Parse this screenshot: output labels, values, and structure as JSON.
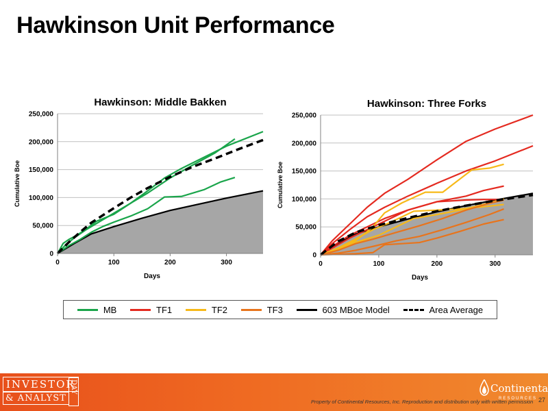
{
  "slide": {
    "title": "Hawkinson Unit Performance",
    "disclaimer": "Property of Continental Resources, Inc. Reproduction and distribution only with written permission",
    "page_number": "27",
    "logo_text_top": "INVESTOR",
    "logo_text_bottom": "& ANALYST",
    "logo_text_day": "DAY",
    "brand_name": "Continental",
    "brand_sub": "RESOURCES"
  },
  "colors": {
    "MB": "#1aa54b",
    "TF1": "#e42a20",
    "TF2": "#f7b918",
    "TF3": "#e8741c",
    "model": "#000000",
    "area_fill": "#a6a6a6",
    "footer": "#ef6a22"
  },
  "legend": [
    {
      "name": "MB",
      "color": "#1aa54b",
      "style": "solid"
    },
    {
      "name": "TF1",
      "color": "#e42a20",
      "style": "solid"
    },
    {
      "name": "TF2",
      "color": "#f7b918",
      "style": "solid"
    },
    {
      "name": "TF3",
      "color": "#e8741c",
      "style": "solid"
    },
    {
      "name": "603 MBoe Model",
      "color": "#000000",
      "style": "solid"
    },
    {
      "name": "Area Average",
      "color": "#000000",
      "style": "dashed"
    }
  ],
  "chart_data": [
    {
      "type": "line",
      "title": "Hawkinson: Middle Bakken",
      "xlabel": "Days",
      "ylabel": "Cumulative Boe",
      "xlim": [
        0,
        365
      ],
      "ylim": [
        0,
        250000
      ],
      "xticks": [
        0,
        100,
        200,
        300
      ],
      "yticks": [
        0,
        50000,
        100000,
        150000,
        200000,
        250000
      ],
      "ytick_labels": [
        "0",
        "50,000",
        "100,000",
        "150,000",
        "200,000",
        "250,000"
      ],
      "grid": "horizontal",
      "area_model": {
        "name": "603 MBoe Model",
        "x": [
          0,
          30,
          60,
          100,
          150,
          200,
          250,
          300,
          365
        ],
        "y": [
          0,
          18000,
          35000,
          48000,
          63000,
          77000,
          88000,
          99000,
          112000
        ]
      },
      "series": [
        {
          "name": "MB",
          "color": "#1aa54b",
          "style": "solid",
          "x": [
            0,
            10,
            20,
            35,
            50,
            70,
            100,
            130,
            160,
            200,
            240,
            280,
            315
          ],
          "y": [
            0,
            18000,
            25000,
            33000,
            43000,
            58000,
            70000,
            90000,
            108000,
            135000,
            158000,
            180000,
            205000
          ]
        },
        {
          "name": "MB",
          "color": "#1aa54b",
          "style": "solid",
          "x": [
            0,
            15,
            30,
            50,
            75,
            100,
            130,
            160,
            190,
            220,
            260,
            300,
            365
          ],
          "y": [
            0,
            16000,
            28000,
            42000,
            57000,
            72000,
            90000,
            112000,
            135000,
            152000,
            172000,
            192000,
            218000
          ]
        },
        {
          "name": "MB",
          "color": "#1aa54b",
          "style": "solid",
          "x": [
            0,
            20,
            40,
            60,
            80,
            100,
            130,
            160,
            190,
            220,
            260,
            290,
            315
          ],
          "y": [
            0,
            14000,
            25000,
            38000,
            48000,
            56000,
            67000,
            80000,
            101000,
            102000,
            114000,
            128000,
            136000
          ]
        },
        {
          "name": "Area Average",
          "color": "#000000",
          "style": "dashed",
          "x": [
            0,
            20,
            40,
            60,
            80,
            100,
            130,
            160,
            200,
            240,
            280,
            320,
            365
          ],
          "y": [
            0,
            20000,
            38000,
            55000,
            68000,
            81000,
            100000,
            117000,
            137000,
            155000,
            170000,
            186000,
            203000
          ]
        }
      ]
    },
    {
      "type": "line",
      "title": "Hawkinson: Three Forks",
      "xlabel": "Days",
      "ylabel": "Cumulative Boe",
      "xlim": [
        0,
        365
      ],
      "ylim": [
        0,
        250000
      ],
      "xticks": [
        0,
        100,
        200,
        300
      ],
      "yticks": [
        0,
        50000,
        100000,
        150000,
        200000,
        250000
      ],
      "ytick_labels": [
        "0",
        "50,000",
        "100,000",
        "150,000",
        "200,000",
        "250,000"
      ],
      "grid": "horizontal",
      "area_model": {
        "name": "603 MBoe Model",
        "x": [
          0,
          30,
          60,
          100,
          150,
          200,
          250,
          300,
          365
        ],
        "y": [
          0,
          20000,
          37000,
          50000,
          64000,
          77000,
          88000,
          98000,
          110000
        ]
      },
      "series": [
        {
          "name": "TF1",
          "color": "#e42a20",
          "style": "solid",
          "x": [
            0,
            20,
            50,
            80,
            110,
            150,
            200,
            250,
            300,
            365
          ],
          "y": [
            0,
            25000,
            55000,
            85000,
            110000,
            135000,
            170000,
            203000,
            225000,
            250000
          ]
        },
        {
          "name": "TF1",
          "color": "#e42a20",
          "style": "solid",
          "x": [
            0,
            20,
            50,
            80,
            110,
            150,
            200,
            250,
            300,
            365
          ],
          "y": [
            0,
            20000,
            45000,
            68000,
            85000,
            105000,
            128000,
            150000,
            168000,
            195000
          ]
        },
        {
          "name": "TF1",
          "color": "#e42a20",
          "style": "solid",
          "x": [
            0,
            20,
            50,
            80,
            110,
            150,
            200,
            250,
            280,
            315
          ],
          "y": [
            0,
            15000,
            35000,
            50000,
            65000,
            80000,
            95000,
            105000,
            115000,
            123000
          ]
        },
        {
          "name": "TF1",
          "color": "#e42a20",
          "style": "solid",
          "x": [
            0,
            20,
            50,
            80,
            110,
            150,
            200,
            250,
            280,
            315
          ],
          "y": [
            0,
            12000,
            30000,
            45000,
            60000,
            80000,
            95000,
            98000,
            99000,
            99000
          ]
        },
        {
          "name": "TF2",
          "color": "#f7b918",
          "style": "solid",
          "x": [
            0,
            30,
            60,
            90,
            110,
            140,
            180,
            210,
            230,
            260,
            290,
            315
          ],
          "y": [
            0,
            12000,
            25000,
            50000,
            75000,
            93000,
            112000,
            112000,
            128000,
            152000,
            155000,
            162000
          ]
        },
        {
          "name": "TF2",
          "color": "#f7b918",
          "style": "solid",
          "x": [
            0,
            30,
            60,
            100,
            130,
            160,
            200,
            240,
            280,
            315
          ],
          "y": [
            0,
            10000,
            22000,
            35000,
            50000,
            65000,
            72000,
            80000,
            90000,
            100000
          ]
        },
        {
          "name": "TF2",
          "color": "#f7b918",
          "style": "solid",
          "x": [
            0,
            30,
            60,
            90,
            120,
            160,
            200,
            240,
            280,
            315
          ],
          "y": [
            0,
            12000,
            28000,
            45000,
            58000,
            78000,
            80000,
            82000,
            86000,
            90000
          ]
        },
        {
          "name": "TF3",
          "color": "#e8741c",
          "style": "solid",
          "x": [
            0,
            30,
            60,
            90,
            130,
            170,
            210,
            250,
            290,
            315
          ],
          "y": [
            0,
            8000,
            20000,
            28000,
            40000,
            52000,
            65000,
            80000,
            92000,
            98000
          ]
        },
        {
          "name": "TF3",
          "color": "#e8741c",
          "style": "solid",
          "x": [
            0,
            30,
            60,
            90,
            130,
            170,
            210,
            250,
            290,
            315
          ],
          "y": [
            0,
            3000,
            8000,
            15000,
            25000,
            33000,
            45000,
            58000,
            72000,
            82000
          ]
        },
        {
          "name": "TF3",
          "color": "#e8741c",
          "style": "solid",
          "x": [
            0,
            30,
            60,
            90,
            110,
            140,
            170,
            200,
            240,
            280,
            315
          ],
          "y": [
            0,
            1000,
            2000,
            4000,
            18000,
            20000,
            22000,
            30000,
            42000,
            55000,
            63000
          ]
        },
        {
          "name": "Area Average",
          "color": "#000000",
          "style": "dashed",
          "x": [
            0,
            30,
            60,
            100,
            150,
            200,
            250,
            300,
            365
          ],
          "y": [
            0,
            24000,
            40000,
            53000,
            66000,
            78000,
            88000,
            97000,
            107000
          ]
        }
      ]
    }
  ]
}
